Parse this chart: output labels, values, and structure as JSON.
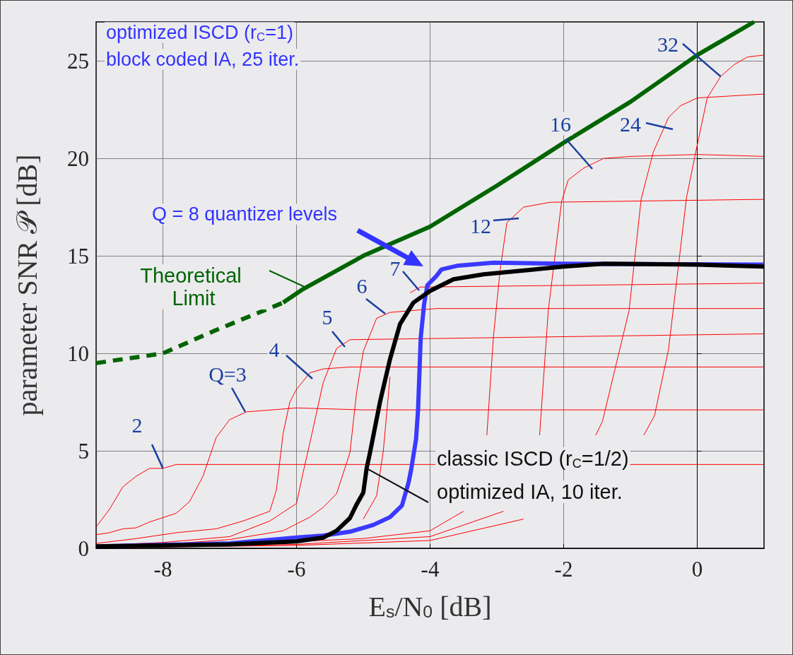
{
  "chart_data": {
    "type": "line",
    "xlabel": "E$_{s}$/N$_{0}$ [dB]",
    "ylabel": "parameter SNR 𝒫 [dB]",
    "xlim": [
      -9,
      1
    ],
    "ylim": [
      0,
      27
    ],
    "xticks": [
      -8,
      -6,
      -4,
      -2,
      0
    ],
    "yticks": [
      0,
      5,
      10,
      15,
      20,
      25
    ],
    "grid": true,
    "marker": "none",
    "line_style": "solid",
    "series": [
      {
        "color": "#ff0000",
        "x": [
          -9,
          -8.8,
          -8.6,
          -8.4,
          -8.2,
          -8,
          -7.8,
          1
        ],
        "values": [
          1.1,
          2.0,
          3.15,
          3.7,
          4.1,
          4.1,
          4.3,
          4.3
        ]
      },
      {
        "color": "#ff0000",
        "x": [
          -9,
          -8.8,
          -8.6,
          -8.4,
          -8.2,
          -7.8,
          -7.6,
          -7.4,
          -7.2,
          -7,
          -6.75,
          -6.55,
          -6,
          -5,
          1
        ],
        "values": [
          0.7,
          0.8,
          1.0,
          1.05,
          1.35,
          1.8,
          2.4,
          3.7,
          5.7,
          6.6,
          7.0,
          7.05,
          7.2,
          7.1,
          7.1
        ]
      },
      {
        "color": "#ff0000",
        "x": [
          -9,
          -8.4,
          -7.8,
          -7.2,
          -6.8,
          -6.4,
          -6.3,
          -6.2,
          -6.1,
          -6,
          -5.8,
          -5.6,
          -5.2,
          1
        ],
        "values": [
          0.25,
          0.5,
          0.8,
          1.0,
          1.4,
          1.9,
          3.0,
          5.9,
          7.5,
          8.15,
          9.0,
          9.2,
          9.3,
          9.3
        ]
      },
      {
        "color": "#ff0000",
        "x": [
          -9,
          -8,
          -7,
          -6.4,
          -6,
          -5.9,
          -5.8,
          -5.6,
          -5.4,
          -5.2,
          1
        ],
        "values": [
          0.15,
          0.3,
          0.6,
          1.4,
          2.3,
          3.9,
          5.4,
          8.5,
          10.25,
          10.7,
          11.0
        ]
      },
      {
        "color": "#ff0000",
        "x": [
          -9,
          -8,
          -7,
          -6.2,
          -5.8,
          -5.6,
          -5.4,
          -5.2,
          -5.1,
          -5,
          -4.8,
          -4.6,
          -3.9,
          1
        ],
        "values": [
          0.1,
          0.2,
          0.45,
          0.9,
          1.6,
          2.1,
          2.8,
          4.9,
          8.0,
          10.1,
          11.8,
          12.1,
          12.3,
          12.3
        ]
      },
      {
        "color": "#ff0000",
        "x": [
          -5,
          -4.8,
          -4.7,
          -4.6,
          -4.45,
          -4.3,
          -4.15,
          1
        ],
        "values": [
          1.5,
          2.7,
          5.0,
          8.8,
          null,
          13.1,
          13.4,
          13.6
        ]
      },
      {
        "color": "#ff0000",
        "x": [
          -9,
          -7,
          -5,
          -4,
          -3.5,
          -3.3,
          -3.15,
          -3.05,
          -2.95,
          -2.85,
          -2.6,
          -2.2,
          1
        ],
        "values": [
          0.05,
          0.2,
          0.5,
          0.9,
          1.9,
          null,
          5.8,
          10.9,
          14.3,
          16.7,
          17.5,
          17.75,
          17.9
        ]
      },
      {
        "color": "#ff0000",
        "x": [
          -9,
          -6,
          -4,
          -2.9,
          -2.6,
          -2.36,
          -2.23,
          -2.03,
          -1.93,
          -1.7,
          -1.4,
          -1,
          0,
          1
        ],
        "values": [
          0.03,
          0.2,
          0.6,
          1.9,
          null,
          5.8,
          12.2,
          17.8,
          18.9,
          19.5,
          20.0,
          20.1,
          20.2,
          20.1
        ]
      },
      {
        "color": "#ff0000",
        "x": [
          -9,
          -6,
          -4,
          -2.6,
          -2,
          -1.52,
          -1.42,
          -1.02,
          -0.84,
          -0.66,
          -0.43,
          -0.25,
          0,
          1
        ],
        "values": [
          0.02,
          0.15,
          0.4,
          1.5,
          null,
          5.8,
          6.5,
          12.2,
          17.9,
          20.3,
          22.1,
          22.7,
          23.1,
          23.3
        ]
      },
      {
        "color": "#ff0000",
        "x": [
          -0.8,
          -0.64,
          -0.43,
          -0.16,
          -0.03,
          0.15,
          0.35,
          0.55,
          0.75,
          1
        ],
        "values": [
          5.8,
          6.8,
          10.2,
          18.0,
          20.2,
          23.1,
          24.2,
          24.8,
          25.2,
          25.3
        ]
      },
      {
        "color": "#3a3aff",
        "x": [
          -9,
          -7,
          -6,
          -5.6,
          -5.2,
          -4.85,
          -4.6,
          -4.42,
          -4.32,
          -4.28,
          -4.21,
          -4.18,
          -4.14,
          -4.09,
          -4.04,
          -3.91,
          -3.83,
          -3.58,
          -3.05,
          -2,
          1
        ],
        "values": [
          0.1,
          0.25,
          0.55,
          0.65,
          0.85,
          1.2,
          1.6,
          2.2,
          3.4,
          4.1,
          5.6,
          7.1,
          10.8,
          12.5,
          13.5,
          13.95,
          14.3,
          14.5,
          14.65,
          14.6,
          14.55
        ]
      },
      {
        "color": "#000000",
        "x": [
          -9,
          -7,
          -6,
          -5.6,
          -5.4,
          -5.2,
          -5.1,
          -5,
          -4.95,
          -4.9,
          -4.75,
          -4.6,
          -4.45,
          -4.25,
          -4,
          -3.65,
          -3.2,
          -2.45,
          -2,
          -1.4,
          0,
          1
        ],
        "values": [
          0.1,
          0.2,
          0.35,
          0.55,
          0.9,
          1.55,
          2.25,
          2.85,
          4.1,
          4.9,
          7.5,
          9.7,
          11.5,
          12.6,
          13.2,
          13.8,
          14.05,
          14.3,
          14.45,
          14.6,
          14.55,
          14.45
        ]
      },
      {
        "color": "#006400",
        "line_style": "dashed",
        "x": [
          -9,
          -8,
          -7.2,
          -6.2
        ],
        "values": [
          9.5,
          10.0,
          11.2,
          12.6
        ]
      },
      {
        "color": "#006400",
        "x": [
          -6.2,
          -5.9,
          -5,
          -4,
          -3,
          -2,
          -1,
          0,
          0.85
        ],
        "values": [
          12.6,
          13.3,
          15.0,
          16.5,
          18.6,
          20.8,
          22.9,
          25.3,
          27
        ]
      }
    ],
    "annotations": [
      "optimized ISCD (r$_{C}$=1)",
      "block coded IA, 25 iter.",
      "Q = 8 quantizer levels",
      "Theoretical Limit",
      "classic ISCD (r$_{C}$=1/2)",
      {
        "text": "optimized IA, 10 iter.",
        "x": -4.95,
        "y": 4.1
      },
      {
        "text": "2",
        "x": -8,
        "y": 4.1
      },
      "Q=3",
      "4",
      "5",
      "6",
      "7",
      "12",
      "16",
      "24",
      {
        "text": "32",
        "x": 0.35,
        "y": 24.2
      }
    ]
  }
}
